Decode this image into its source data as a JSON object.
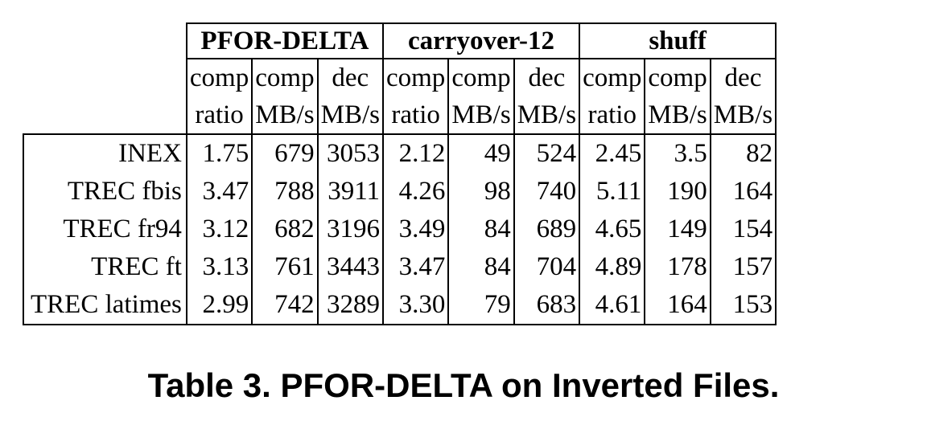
{
  "table": {
    "groups": [
      "PFOR-DELTA",
      "carryover-12",
      "shuff"
    ],
    "subheaders_top": [
      "comp",
      "comp",
      "dec",
      "comp",
      "comp",
      "dec",
      "comp",
      "comp",
      "dec"
    ],
    "subheaders_bottom": [
      "ratio",
      "MB/s",
      "MB/s",
      "ratio",
      "MB/s",
      "MB/s",
      "ratio",
      "MB/s",
      "MB/s"
    ],
    "rows": [
      {
        "label": "INEX",
        "cells": [
          "1.75",
          "679",
          "3053",
          "2.12",
          "49",
          "524",
          "2.45",
          "3.5",
          "82"
        ]
      },
      {
        "label": "TREC fbis",
        "cells": [
          "3.47",
          "788",
          "3911",
          "4.26",
          "98",
          "740",
          "5.11",
          "190",
          "164"
        ]
      },
      {
        "label": "TREC fr94",
        "cells": [
          "3.12",
          "682",
          "3196",
          "3.49",
          "84",
          "689",
          "4.65",
          "149",
          "154"
        ]
      },
      {
        "label": "TREC ft",
        "cells": [
          "3.13",
          "761",
          "3443",
          "3.47",
          "84",
          "704",
          "4.89",
          "178",
          "157"
        ]
      },
      {
        "label": "TREC latimes",
        "cells": [
          "2.99",
          "742",
          "3289",
          "3.30",
          "79",
          "683",
          "4.61",
          "164",
          "153"
        ]
      }
    ]
  },
  "caption": "Table 3. PFOR-DELTA on Inverted Files."
}
